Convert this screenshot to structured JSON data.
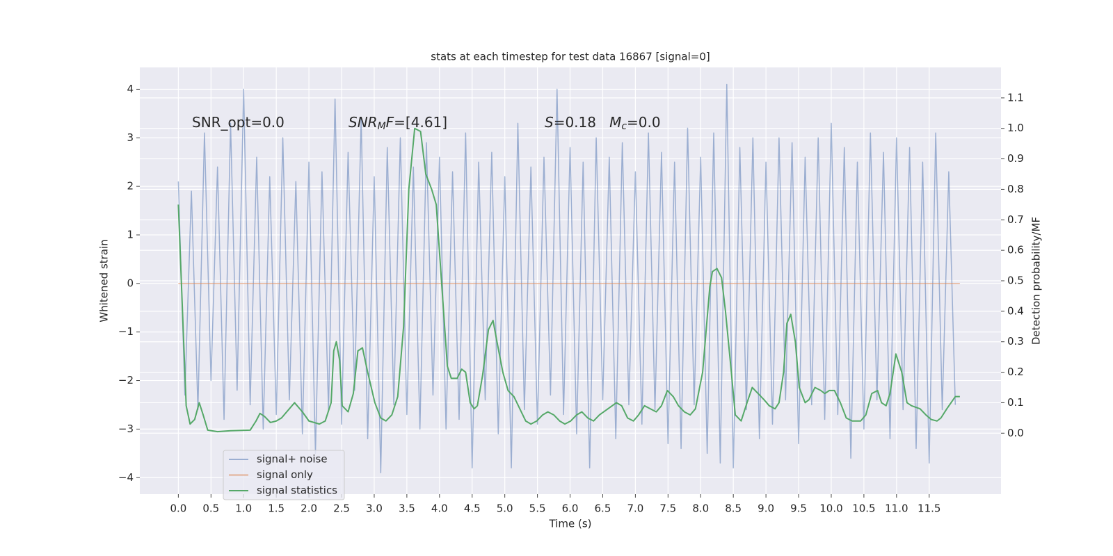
{
  "chart_data": {
    "type": "line",
    "title": "stats at each timestep for test data 16867 [signal=0]",
    "x_label": "Time (s)",
    "y_label": "Whitened strain",
    "y2_label": "Detection probability/MF",
    "grid": true,
    "legend": "lower left",
    "annotations": [
      [
        {
          "text": "SNR_opt=0.0"
        }
      ],
      [
        {
          "text": "SNR",
          "italic": true
        },
        {
          "text": "M",
          "italic": true,
          "sub": true
        },
        {
          "text": "F",
          "italic": true
        },
        {
          "text": "=[4.61]"
        }
      ],
      [
        {
          "text": "S",
          "italic": true
        },
        {
          "text": "=0.18   "
        },
        {
          "text": "M",
          "italic": true
        },
        {
          "text": "c",
          "italic": true,
          "sub": true
        },
        {
          "text": "=0.0"
        }
      ]
    ],
    "xlim": [
      -0.59,
      12.6
    ],
    "ylim": [
      -4.34,
      4.45
    ],
    "y2lim": [
      -0.2,
      1.2
    ],
    "xticks": [
      {
        "value": 0,
        "label": "0.0"
      },
      0.5,
      {
        "value": 1,
        "label": "1.0"
      },
      1.5,
      {
        "value": 2,
        "label": "2.0"
      },
      2.5,
      {
        "value": 3,
        "label": "3.0"
      },
      3.5,
      {
        "value": 4,
        "label": "4.0"
      },
      4.5,
      {
        "value": 5,
        "label": "5.0"
      },
      5.5,
      {
        "value": 6,
        "label": "6.0"
      },
      6.5,
      {
        "value": 7,
        "label": "7.0"
      },
      7.5,
      {
        "value": 8,
        "label": "8.0"
      },
      8.5,
      {
        "value": 9,
        "label": "9.0"
      },
      9.5,
      {
        "value": 10,
        "label": "10.0"
      },
      10.5,
      {
        "value": 11,
        "label": "11.0"
      },
      11.5
    ],
    "yticks": [
      {
        "value": -4,
        "label": "−4"
      },
      {
        "value": -3,
        "label": "−3"
      },
      {
        "value": -2,
        "label": "−2"
      },
      {
        "value": -1,
        "label": "−1"
      },
      0,
      1,
      2,
      3,
      4
    ],
    "y2ticks": [
      {
        "value": 0,
        "label": "0.0"
      },
      0.1,
      0.2,
      0.3,
      0.4,
      0.5,
      0.6,
      0.7,
      0.8,
      0.9,
      {
        "value": 1,
        "label": "1.0"
      },
      1.1
    ],
    "series": [
      {
        "name": "signal+ noise",
        "color": "#4c72b0",
        "opacity": 0.5,
        "x": [
          0,
          0.1,
          0.2,
          0.3,
          0.4,
          0.5,
          0.6,
          0.7,
          0.8,
          0.9,
          1,
          1.1,
          1.2,
          1.3,
          1.4,
          1.5,
          1.6,
          1.7,
          1.8,
          1.9,
          2,
          2.1,
          2.2,
          2.3,
          2.4,
          2.5,
          2.6,
          2.7,
          2.8,
          2.9,
          3,
          3.1,
          3.2,
          3.3,
          3.4,
          3.5,
          3.6,
          3.7,
          3.8,
          3.9,
          4,
          4.1,
          4.2,
          4.3,
          4.4,
          4.5,
          4.6,
          4.7,
          4.8,
          4.9,
          5,
          5.1,
          5.2,
          5.3,
          5.4,
          5.5,
          5.6,
          5.7,
          5.8,
          5.9,
          6,
          6.1,
          6.2,
          6.3,
          6.4,
          6.5,
          6.6,
          6.7,
          6.8,
          6.9,
          7,
          7.1,
          7.2,
          7.3,
          7.4,
          7.5,
          7.6,
          7.7,
          7.8,
          7.9,
          8,
          8.1,
          8.2,
          8.3,
          8.4,
          8.5,
          8.6,
          8.7,
          8.8,
          8.9,
          9,
          9.1,
          9.2,
          9.3,
          9.4,
          9.5,
          9.6,
          9.7,
          9.8,
          9.9,
          10,
          10.1,
          10.2,
          10.3,
          10.4,
          10.5,
          10.6,
          10.7,
          10.8,
          10.9,
          11,
          11.1,
          11.2,
          11.3,
          11.4,
          11.5,
          11.6,
          11.7,
          11.8,
          11.9
        ],
        "values": [
          2.1,
          -2.3,
          1.9,
          -2.6,
          3.1,
          -2.0,
          2.4,
          -2.8,
          3.3,
          -2.2,
          4.0,
          -2.5,
          2.6,
          -3.0,
          2.2,
          -2.7,
          3.0,
          -2.4,
          2.1,
          -3.1,
          2.5,
          -3.5,
          2.3,
          -2.6,
          3.8,
          -2.9,
          2.7,
          -2.2,
          3.4,
          -3.2,
          2.2,
          -3.9,
          2.8,
          -2.5,
          3.0,
          -2.7,
          2.4,
          -3.0,
          2.9,
          -2.3,
          2.6,
          -3.0,
          2.3,
          -2.8,
          3.1,
          -3.8,
          2.5,
          -2.4,
          2.7,
          -3.1,
          2.2,
          -3.8,
          3.3,
          -2.6,
          2.4,
          -2.9,
          2.6,
          -2.3,
          4.0,
          -2.7,
          2.8,
          -3.1,
          2.5,
          -3.8,
          3.0,
          -2.4,
          2.6,
          -3.2,
          2.9,
          -2.5,
          2.3,
          -2.9,
          3.1,
          -2.6,
          2.7,
          -3.3,
          2.5,
          -3.4,
          3.2,
          -2.5,
          2.6,
          -3.5,
          3.1,
          -3.7,
          4.1,
          -3.8,
          2.8,
          -2.6,
          3.0,
          -3.2,
          2.5,
          -2.9,
          3.0,
          -2.4,
          2.9,
          -3.3,
          2.6,
          -2.5,
          3.0,
          -2.8,
          3.3,
          -2.7,
          2.8,
          -3.6,
          2.5,
          -3.0,
          3.1,
          -2.4,
          2.7,
          -3.2,
          3.0,
          -2.6,
          2.8,
          -3.4,
          2.5,
          -3.7,
          3.1,
          -2.6,
          2.3,
          -2.5
        ]
      },
      {
        "name": "signal only",
        "color": "#dd8452",
        "opacity": 0.6,
        "x": [
          0,
          11.97
        ],
        "values": [
          0,
          0
        ]
      },
      {
        "name": "signal statistics",
        "color": "#55a868",
        "opacity": 1,
        "axis": "y2",
        "x": [
          0,
          0.12,
          0.18,
          0.25,
          0.32,
          0.38,
          0.45,
          0.6,
          0.8,
          1.1,
          1.19,
          1.25,
          1.32,
          1.41,
          1.5,
          1.58,
          1.78,
          1.9,
          2.0,
          2.16,
          2.25,
          2.34,
          2.38,
          2.42,
          2.47,
          2.51,
          2.6,
          2.68,
          2.75,
          2.82,
          2.9,
          3.01,
          3.1,
          3.18,
          3.27,
          3.36,
          3.45,
          3.53,
          3.62,
          3.71,
          3.79,
          3.88,
          3.95,
          4.03,
          4.12,
          4.18,
          4.27,
          4.34,
          4.4,
          4.47,
          4.53,
          4.58,
          4.66,
          4.75,
          4.82,
          4.88,
          4.97,
          5.05,
          5.14,
          5.23,
          5.32,
          5.4,
          5.49,
          5.58,
          5.66,
          5.75,
          5.84,
          5.92,
          6.01,
          6.1,
          6.18,
          6.27,
          6.36,
          6.45,
          6.58,
          6.71,
          6.79,
          6.88,
          6.97,
          7.05,
          7.14,
          7.23,
          7.32,
          7.4,
          7.49,
          7.58,
          7.66,
          7.75,
          7.84,
          7.92,
          8.03,
          8.14,
          8.18,
          8.25,
          8.32,
          8.38,
          8.47,
          8.53,
          8.62,
          8.71,
          8.79,
          8.88,
          8.97,
          9.05,
          9.14,
          9.2,
          9.27,
          9.32,
          9.38,
          9.45,
          9.51,
          9.6,
          9.66,
          9.75,
          9.84,
          9.9,
          9.97,
          10.05,
          10.14,
          10.23,
          10.32,
          10.45,
          10.53,
          10.62,
          10.71,
          10.77,
          10.84,
          10.9,
          10.99,
          11.08,
          11.16,
          11.23,
          11.36,
          11.45,
          11.53,
          11.62,
          11.68,
          11.77,
          11.9,
          11.97
        ],
        "values": [
          0.75,
          0.09,
          0.03,
          0.045,
          0.1,
          0.06,
          0.01,
          0.005,
          0.008,
          0.01,
          0.04,
          0.065,
          0.055,
          0.035,
          0.04,
          0.05,
          0.1,
          0.07,
          0.04,
          0.03,
          0.04,
          0.1,
          0.27,
          0.3,
          0.24,
          0.09,
          0.07,
          0.13,
          0.27,
          0.28,
          0.2,
          0.1,
          0.05,
          0.04,
          0.06,
          0.12,
          0.35,
          0.8,
          1.0,
          0.99,
          0.85,
          0.8,
          0.75,
          0.5,
          0.22,
          0.18,
          0.18,
          0.21,
          0.2,
          0.1,
          0.08,
          0.09,
          0.19,
          0.34,
          0.37,
          0.3,
          0.2,
          0.14,
          0.12,
          0.08,
          0.04,
          0.03,
          0.04,
          0.06,
          0.07,
          0.06,
          0.04,
          0.03,
          0.04,
          0.06,
          0.07,
          0.05,
          0.04,
          0.06,
          0.08,
          0.1,
          0.09,
          0.05,
          0.04,
          0.06,
          0.09,
          0.08,
          0.07,
          0.09,
          0.14,
          0.12,
          0.09,
          0.07,
          0.06,
          0.08,
          0.2,
          0.48,
          0.53,
          0.54,
          0.51,
          0.4,
          0.2,
          0.06,
          0.04,
          0.1,
          0.15,
          0.13,
          0.11,
          0.09,
          0.08,
          0.1,
          0.2,
          0.36,
          0.39,
          0.3,
          0.15,
          0.1,
          0.11,
          0.15,
          0.14,
          0.13,
          0.14,
          0.14,
          0.1,
          0.05,
          0.04,
          0.04,
          0.06,
          0.13,
          0.14,
          0.1,
          0.09,
          0.13,
          0.26,
          0.2,
          0.1,
          0.09,
          0.08,
          0.06,
          0.045,
          0.04,
          0.05,
          0.08,
          0.12,
          0.12
        ]
      }
    ]
  }
}
